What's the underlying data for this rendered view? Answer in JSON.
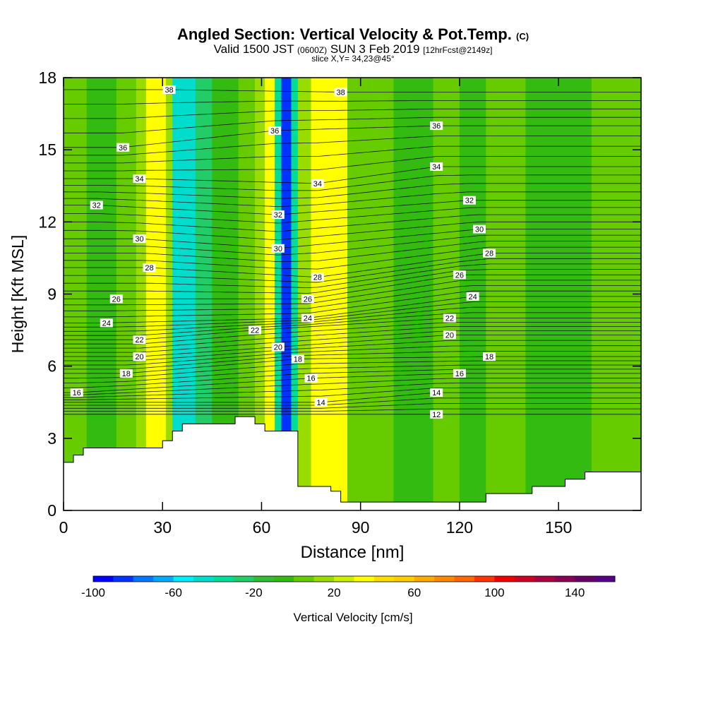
{
  "title": {
    "main": "Angled Section: Vertical Velocity & Pot.Temp.",
    "main_suffix": "(C)",
    "valid_prefix": "Valid 1500 JST",
    "valid_utc": "(0600Z)",
    "valid_date": "SUN 3 Feb 2019",
    "forecast": "[12hrFcst@2149z]",
    "slice": "slice X,Y= 34,23@45°"
  },
  "chart_data": {
    "type": "heatmap",
    "xlabel": "Distance [nm]",
    "ylabel": "Height [Kft MSL]",
    "xlim": [
      0,
      175
    ],
    "ylim": [
      0,
      18
    ],
    "x_ticks": [
      "0",
      "30",
      "60",
      "90",
      "120",
      "150"
    ],
    "y_ticks": [
      "0",
      "3",
      "6",
      "9",
      "12",
      "15",
      "18"
    ],
    "colorbar": {
      "label": "Vertical Velocity [cm/s]",
      "ticks": [
        "-100",
        "-60",
        "-20",
        "20",
        "60",
        "100",
        "140"
      ],
      "min": -100,
      "max": 160,
      "step": 10,
      "colors": [
        "#0000ff",
        "#0033ff",
        "#0077ff",
        "#00aaff",
        "#00eeff",
        "#00ddcc",
        "#00dd99",
        "#22cc66",
        "#33bb33",
        "#33bb11",
        "#66cc00",
        "#99dd00",
        "#ccee00",
        "#ffff00",
        "#ffdd00",
        "#ffcc00",
        "#ffaa00",
        "#ff8800",
        "#ff6600",
        "#ff3300",
        "#ee0000",
        "#cc0022",
        "#aa0044",
        "#880055",
        "#660066",
        "#550088"
      ]
    },
    "velocity_bands": [
      {
        "x": [
          0,
          7
        ],
        "w": 5
      },
      {
        "x": [
          7,
          16
        ],
        "w": -5
      },
      {
        "x": [
          16,
          22
        ],
        "w": 5
      },
      {
        "x": [
          22,
          25
        ],
        "w": 15
      },
      {
        "x": [
          25,
          31
        ],
        "w": 30
      },
      {
        "x": [
          31,
          33
        ],
        "w": 10
      },
      {
        "x": [
          33,
          40
        ],
        "w": -45
      },
      {
        "x": [
          40,
          45
        ],
        "w": -25
      },
      {
        "x": [
          45,
          53
        ],
        "w": -5
      },
      {
        "x": [
          53,
          58
        ],
        "w": 5
      },
      {
        "x": [
          58,
          61
        ],
        "w": 15
      },
      {
        "x": [
          61,
          64
        ],
        "w": 30
      },
      {
        "x": [
          64,
          66
        ],
        "w": -40
      },
      {
        "x": [
          66,
          69
        ],
        "w": -85
      },
      {
        "x": [
          69,
          71
        ],
        "w": -35
      },
      {
        "x": [
          71,
          75
        ],
        "w": 15
      },
      {
        "x": [
          75,
          86
        ],
        "w": 30
      },
      {
        "x": [
          86,
          90
        ],
        "w": 5
      },
      {
        "x": [
          90,
          100
        ],
        "w": 5
      },
      {
        "x": [
          100,
          112
        ],
        "w": -5
      },
      {
        "x": [
          112,
          120
        ],
        "w": 5
      },
      {
        "x": [
          120,
          128
        ],
        "w": -5
      },
      {
        "x": [
          128,
          140
        ],
        "w": 5
      },
      {
        "x": [
          140,
          160
        ],
        "w": -5
      },
      {
        "x": [
          160,
          175
        ],
        "w": 5
      }
    ],
    "terrain": {
      "x": [
        0,
        3,
        3,
        6,
        6,
        7,
        7,
        30,
        30,
        33,
        33,
        36,
        36,
        52,
        52,
        58,
        58,
        61,
        61,
        71,
        71,
        81,
        81,
        84,
        84,
        91,
        91,
        128,
        128,
        142,
        142,
        152,
        152,
        158,
        158,
        175
      ],
      "y": [
        2.0,
        2.0,
        2.3,
        2.3,
        2.6,
        2.6,
        2.6,
        2.6,
        2.9,
        2.9,
        3.3,
        3.3,
        3.6,
        3.6,
        3.9,
        3.9,
        3.6,
        3.6,
        3.3,
        3.3,
        1.0,
        1.0,
        0.8,
        0.8,
        0.35,
        0.35,
        0.35,
        0.35,
        0.7,
        0.7,
        1.0,
        1.0,
        1.3,
        1.3,
        1.6,
        1.6
      ]
    },
    "contour_labels": [
      {
        "x": 32,
        "y": 17.5,
        "v": "38"
      },
      {
        "x": 84,
        "y": 17.4,
        "v": "38"
      },
      {
        "x": 64,
        "y": 15.8,
        "v": "36"
      },
      {
        "x": 18,
        "y": 15.1,
        "v": "36"
      },
      {
        "x": 113,
        "y": 16.0,
        "v": "36"
      },
      {
        "x": 23,
        "y": 13.8,
        "v": "34"
      },
      {
        "x": 77,
        "y": 13.6,
        "v": "34"
      },
      {
        "x": 113,
        "y": 14.3,
        "v": "34"
      },
      {
        "x": 10,
        "y": 12.7,
        "v": "32"
      },
      {
        "x": 65,
        "y": 12.3,
        "v": "32"
      },
      {
        "x": 123,
        "y": 12.9,
        "v": "32"
      },
      {
        "x": 23,
        "y": 11.3,
        "v": "30"
      },
      {
        "x": 65,
        "y": 10.9,
        "v": "30"
      },
      {
        "x": 126,
        "y": 11.7,
        "v": "30"
      },
      {
        "x": 26,
        "y": 10.1,
        "v": "28"
      },
      {
        "x": 77,
        "y": 9.7,
        "v": "28"
      },
      {
        "x": 129,
        "y": 10.7,
        "v": "28"
      },
      {
        "x": 16,
        "y": 8.8,
        "v": "26"
      },
      {
        "x": 74,
        "y": 8.8,
        "v": "26"
      },
      {
        "x": 120,
        "y": 9.8,
        "v": "26"
      },
      {
        "x": 13,
        "y": 7.8,
        "v": "24"
      },
      {
        "x": 74,
        "y": 8.0,
        "v": "24"
      },
      {
        "x": 124,
        "y": 8.9,
        "v": "24"
      },
      {
        "x": 58,
        "y": 7.5,
        "v": "22"
      },
      {
        "x": 23,
        "y": 7.1,
        "v": "22"
      },
      {
        "x": 117,
        "y": 8.0,
        "v": "22"
      },
      {
        "x": 23,
        "y": 6.4,
        "v": "20"
      },
      {
        "x": 65,
        "y": 6.8,
        "v": "20"
      },
      {
        "x": 117,
        "y": 7.3,
        "v": "20"
      },
      {
        "x": 71,
        "y": 6.3,
        "v": "18"
      },
      {
        "x": 19,
        "y": 5.7,
        "v": "18"
      },
      {
        "x": 129,
        "y": 6.4,
        "v": "18"
      },
      {
        "x": 75,
        "y": 5.5,
        "v": "16"
      },
      {
        "x": 4,
        "y": 4.9,
        "v": "16"
      },
      {
        "x": 120,
        "y": 5.7,
        "v": "16"
      },
      {
        "x": 78,
        "y": 4.5,
        "v": "14"
      },
      {
        "x": 113,
        "y": 4.9,
        "v": "14"
      },
      {
        "x": 113,
        "y": 4.0,
        "v": "12"
      }
    ]
  }
}
